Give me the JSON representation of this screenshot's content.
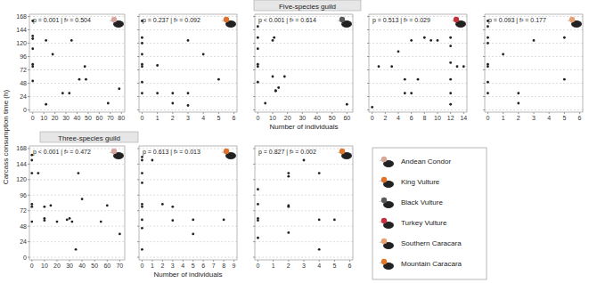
{
  "figure": {
    "y_label": "Carcass consumption time (h)",
    "guild_titles": [
      "Five-species guild",
      "Three-species guild"
    ],
    "legend_entries": [
      "Andean Condor",
      "King Vulture",
      "Black Vulture",
      "Turkey Vulture",
      "Southern Caracara",
      "Mountain Caracara"
    ]
  },
  "chart_data": [
    {
      "type": "scatter",
      "annotation": "p = 0.001 | f² = 0.504",
      "color": "#222222",
      "marker": "circle",
      "grid": true,
      "x": [
        0,
        0,
        0,
        0,
        0,
        0,
        0,
        12,
        12,
        18,
        27,
        33,
        35,
        42,
        47,
        48,
        68,
        78
      ],
      "values": [
        160,
        133,
        128,
        110,
        82,
        78,
        52,
        125,
        10,
        100,
        30,
        30,
        125,
        55,
        78,
        55,
        12,
        38
      ],
      "xlim": [
        -3,
        83
      ],
      "xticks": [
        0,
        10,
        20,
        30,
        40,
        50,
        60,
        70,
        80
      ],
      "ylim": [
        -4,
        172
      ],
      "yticks": [
        0,
        24,
        48,
        72,
        96,
        120,
        144,
        168
      ]
    },
    {
      "type": "scatter",
      "annotation": "p = 0.237 | f² = 0.092",
      "color": "#222222",
      "marker": "circle",
      "grid": true,
      "tick_labels": "x",
      "x": [
        0,
        0,
        0,
        0,
        0,
        0,
        0,
        0,
        1,
        1,
        2,
        2,
        3,
        3,
        3,
        4,
        5
      ],
      "values": [
        160,
        130,
        120,
        100,
        82,
        78,
        50,
        30,
        80,
        30,
        30,
        12,
        125,
        30,
        8,
        100,
        55
      ],
      "xlim": [
        -0.2,
        6.2
      ],
      "xticks": [
        0,
        1,
        2,
        3,
        4,
        5,
        6
      ],
      "ylim": [
        -4,
        172
      ],
      "yticks": [
        0,
        24,
        48,
        72,
        96,
        120,
        144,
        168
      ]
    },
    {
      "type": "scatter",
      "annotation": "p < 0.001 | f² = 0.614",
      "color": "#222222",
      "marker": "circle",
      "grid": true,
      "tick_labels": "x",
      "x_label": "Number of individuals",
      "x": [
        0,
        0,
        0,
        0,
        0,
        0,
        5,
        10,
        10,
        11,
        12,
        12,
        14,
        18,
        60
      ],
      "values": [
        150,
        130,
        110,
        82,
        78,
        50,
        12,
        125,
        60,
        130,
        35,
        34,
        40,
        60,
        10
      ],
      "xlim": [
        -2,
        64
      ],
      "xticks": [
        0,
        10,
        20,
        30,
        40,
        50,
        60
      ],
      "ylim": [
        -4,
        172
      ],
      "yticks": [
        0,
        24,
        48,
        72,
        96,
        120,
        144,
        168
      ]
    },
    {
      "type": "scatter",
      "annotation": "p = 0.513 | f² = 0.029",
      "color": "#222222",
      "marker": "circle",
      "grid": true,
      "tick_labels": "x",
      "x": [
        0,
        1,
        3,
        4,
        5,
        5,
        6,
        6,
        7,
        8,
        9,
        10,
        12,
        12,
        12,
        12,
        12,
        12,
        13,
        14
      ],
      "values": [
        5,
        78,
        78,
        105,
        30,
        55,
        125,
        30,
        55,
        130,
        125,
        125,
        55,
        30,
        10,
        115,
        130,
        85,
        78,
        78
      ],
      "xlim": [
        -0.5,
        14.5
      ],
      "xticks": [
        0,
        2,
        4,
        6,
        8,
        10,
        12,
        14
      ],
      "ylim": [
        -4,
        172
      ],
      "yticks": [
        0,
        24,
        48,
        72,
        96,
        120,
        144,
        168
      ]
    },
    {
      "type": "scatter",
      "annotation": "p = 0.093 | f² = 0.177",
      "color": "#222222",
      "marker": "circle",
      "grid": true,
      "tick_labels": "x",
      "x": [
        0,
        0,
        0,
        0,
        0,
        0,
        0,
        0,
        1,
        2,
        2,
        3,
        5,
        5
      ],
      "values": [
        160,
        150,
        130,
        120,
        82,
        78,
        50,
        30,
        100,
        30,
        12,
        125,
        130,
        55
      ],
      "xlim": [
        -0.2,
        6.2
      ],
      "xticks": [
        0,
        1,
        2,
        3,
        4,
        5,
        6
      ],
      "ylim": [
        -4,
        172
      ],
      "yticks": [
        0,
        24,
        48,
        72,
        96,
        120,
        144,
        168
      ]
    },
    {
      "type": "scatter",
      "annotation": "p < 0.001 | f² = 0.472",
      "color": "#222222",
      "marker": "circle",
      "grid": true,
      "x": [
        0,
        0,
        0,
        0,
        0,
        0,
        5,
        10,
        10,
        10,
        15,
        20,
        28,
        30,
        32,
        35,
        37,
        40,
        55,
        60,
        70
      ],
      "values": [
        158,
        150,
        130,
        82,
        78,
        55,
        130,
        78,
        60,
        57,
        80,
        55,
        58,
        60,
        55,
        12,
        130,
        90,
        55,
        80,
        36
      ],
      "xlim": [
        -2,
        74
      ],
      "xticks": [
        0,
        10,
        20,
        30,
        40,
        50,
        60,
        70
      ],
      "ylim": [
        -4,
        172
      ],
      "yticks": [
        0,
        24,
        48,
        72,
        96,
        120,
        144,
        168
      ]
    },
    {
      "type": "scatter",
      "annotation": "p = 0.613 | f² = 0.013",
      "color": "#222222",
      "marker": "circle",
      "grid": true,
      "tick_labels": "x",
      "x_label": "Number of individuals",
      "x": [
        0,
        0,
        0,
        0,
        0,
        0,
        0,
        0,
        0,
        1,
        2,
        3,
        3,
        5,
        5,
        8
      ],
      "values": [
        155,
        150,
        130,
        115,
        82,
        78,
        58,
        45,
        12,
        150,
        82,
        78,
        57,
        58,
        36,
        58
      ],
      "xlim": [
        -0.3,
        9.3
      ],
      "xticks": [
        0,
        1,
        2,
        3,
        4,
        5,
        6,
        7,
        8,
        9
      ],
      "ylim": [
        -4,
        172
      ],
      "yticks": [
        0,
        24,
        48,
        72,
        96,
        120,
        144,
        168
      ]
    },
    {
      "type": "scatter",
      "annotation": "p = 0.827 | f² = 0.002",
      "color": "#222222",
      "marker": "circle",
      "grid": true,
      "tick_labels": "x",
      "x": [
        0,
        0,
        0,
        0,
        0,
        2,
        2,
        2,
        2,
        2,
        3,
        4,
        4,
        4,
        5
      ],
      "values": [
        105,
        82,
        60,
        57,
        30,
        130,
        125,
        80,
        78,
        38,
        150,
        130,
        58,
        12,
        58
      ],
      "xlim": [
        -0.2,
        6.2
      ],
      "xticks": [
        0,
        1,
        2,
        3,
        4,
        5,
        6
      ],
      "ylim": [
        -4,
        172
      ],
      "yticks": [
        0,
        24,
        48,
        72,
        96,
        120,
        144,
        168
      ]
    }
  ]
}
